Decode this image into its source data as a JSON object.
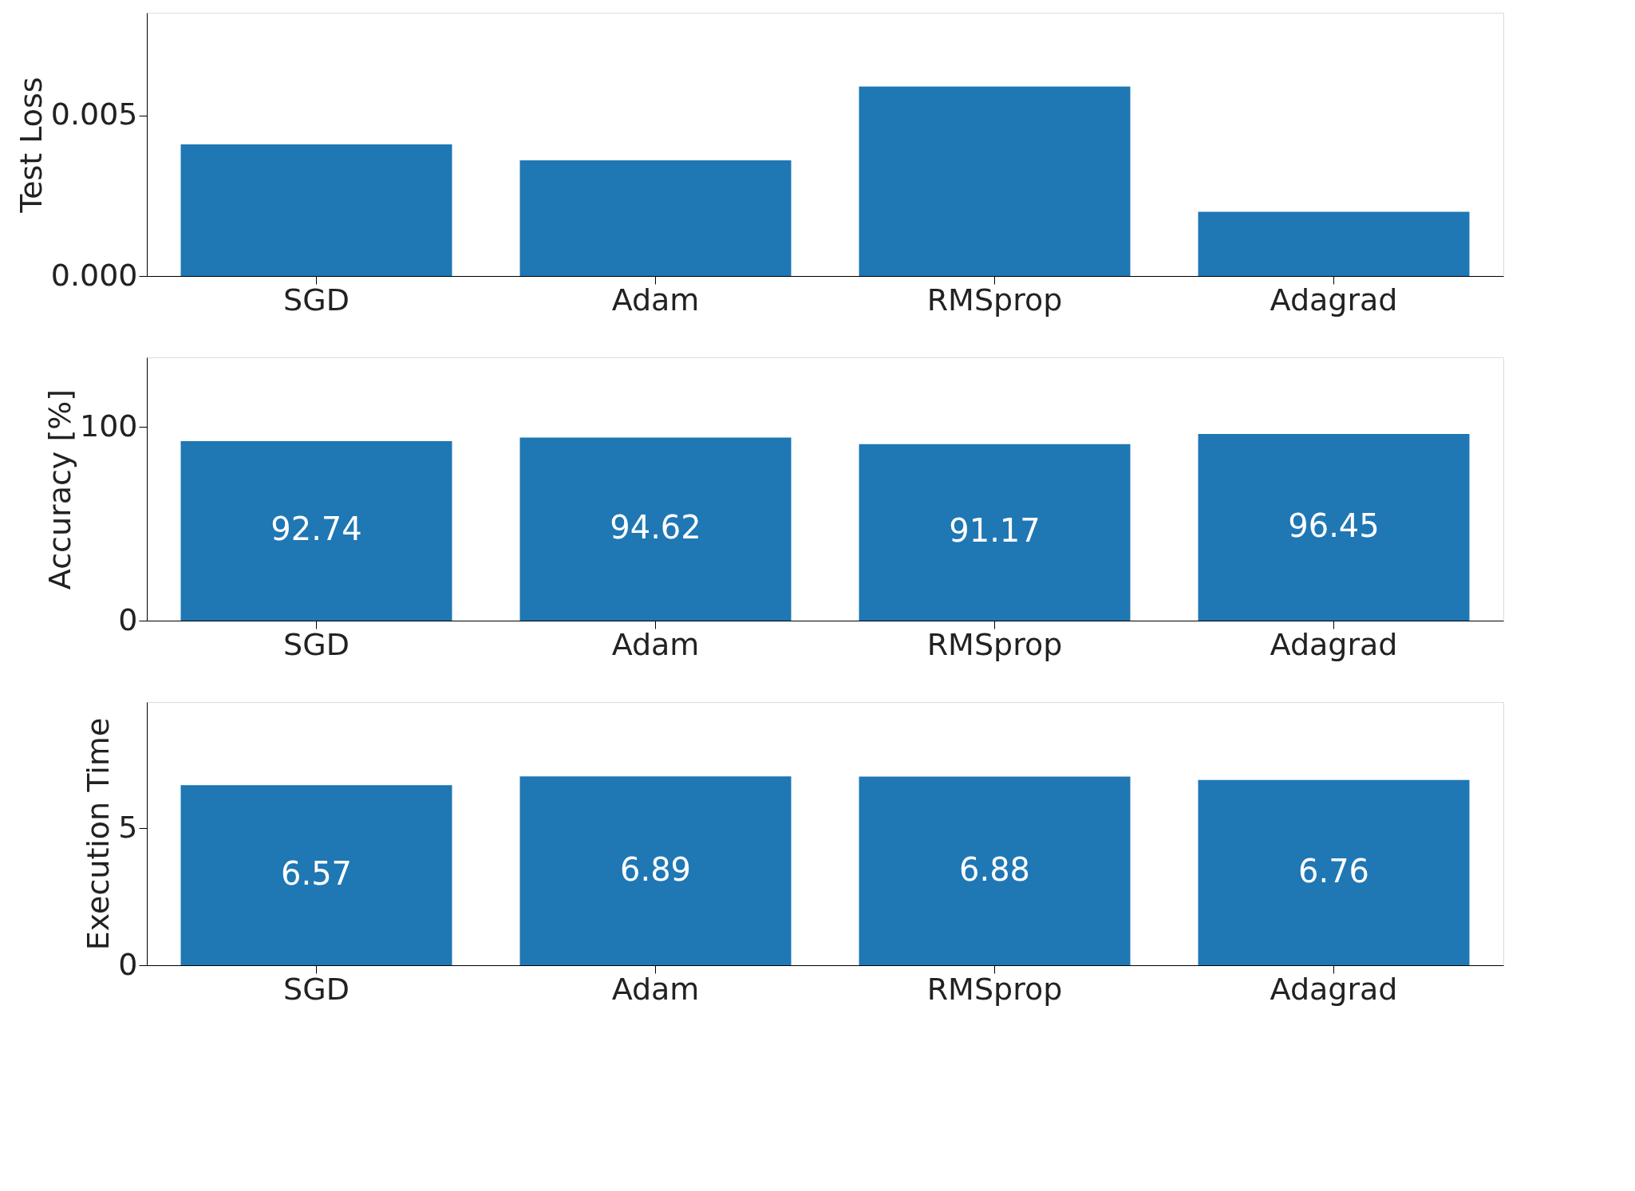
{
  "chart_data": [
    {
      "type": "bar",
      "categories": [
        "SGD",
        "Adam",
        "RMSprop",
        "Adagrad"
      ],
      "values": [
        0.0041,
        0.0036,
        0.0059,
        0.002
      ],
      "color": "#1f77b4",
      "ylabel": "Test Loss",
      "ylim": [
        0,
        0.0082
      ],
      "yticks": [
        {
          "value": 0,
          "label": "0.000"
        },
        {
          "value": 0.005,
          "label": "0.005"
        }
      ],
      "grid": false
    },
    {
      "type": "bar",
      "categories": [
        "SGD",
        "Adam",
        "RMSprop",
        "Adagrad"
      ],
      "values": [
        92.74,
        94.62,
        91.17,
        96.45
      ],
      "color": "#1f77b4",
      "ylabel": "Accuracy [%]",
      "ylim": [
        0,
        136
      ],
      "yticks": [
        0,
        100
      ],
      "data_labels": true,
      "grid": false
    },
    {
      "type": "bar",
      "categories": [
        "SGD",
        "Adam",
        "RMSprop",
        "Adagrad"
      ],
      "values": [
        6.57,
        6.89,
        6.88,
        6.76
      ],
      "color": "#1f77b4",
      "ylabel": "Execution Time",
      "ylim": [
        0,
        9.6
      ],
      "yticks": [
        0,
        5
      ],
      "data_labels": true,
      "grid": false
    }
  ]
}
